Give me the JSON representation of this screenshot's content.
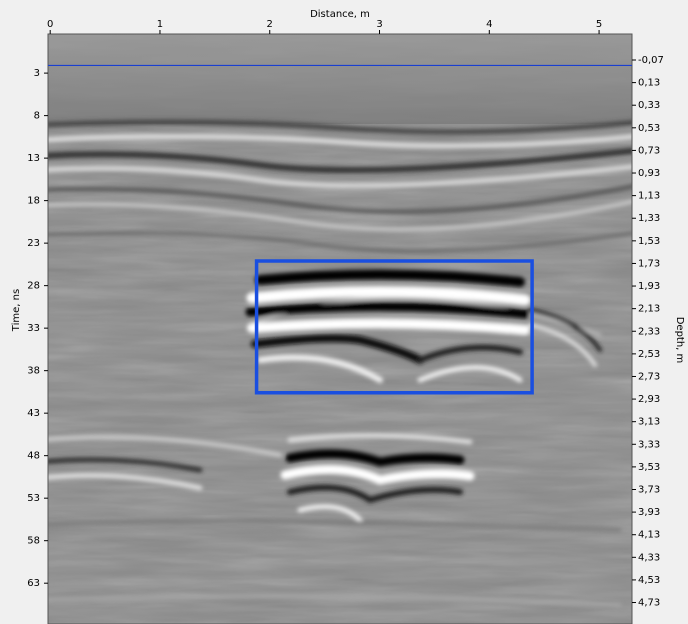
{
  "chart_data": {
    "type": "radargram",
    "xlabel": "Distance, m",
    "ylabel": "Time, ns",
    "y2label": "Depth, m",
    "xlim": [
      -0.02,
      5.3
    ],
    "xticks": [
      0,
      1,
      2,
      3,
      4,
      5
    ],
    "ylim": [
      -1.6,
      67.8
    ],
    "yticks": [
      3,
      8,
      13,
      18,
      23,
      28,
      33,
      38,
      43,
      48,
      53,
      58,
      63
    ],
    "y2lim": [
      -0.3,
      4.92
    ],
    "y2ticks": [
      {
        "value": -0.07,
        "label": "-0,07"
      },
      {
        "value": 0.13,
        "label": "0,13"
      },
      {
        "value": 0.33,
        "label": "0,33"
      },
      {
        "value": 0.53,
        "label": "0,53"
      },
      {
        "value": 0.73,
        "label": "0,73"
      },
      {
        "value": 0.93,
        "label": "0,93"
      },
      {
        "value": 1.13,
        "label": "1,13"
      },
      {
        "value": 1.33,
        "label": "1,33"
      },
      {
        "value": 1.53,
        "label": "1,53"
      },
      {
        "value": 1.73,
        "label": "1,73"
      },
      {
        "value": 1.93,
        "label": "1,93"
      },
      {
        "value": 2.13,
        "label": "2,13"
      },
      {
        "value": 2.33,
        "label": "2,33"
      },
      {
        "value": 2.53,
        "label": "2,53"
      },
      {
        "value": 2.73,
        "label": "2,73"
      },
      {
        "value": 2.93,
        "label": "2,93"
      },
      {
        "value": 3.13,
        "label": "3,13"
      },
      {
        "value": 3.33,
        "label": "3,33"
      },
      {
        "value": 3.53,
        "label": "3,53"
      },
      {
        "value": 3.73,
        "label": "3,73"
      },
      {
        "value": 3.93,
        "label": "3,93"
      },
      {
        "value": 4.13,
        "label": "4,13"
      },
      {
        "value": 4.33,
        "label": "4,33"
      },
      {
        "value": 4.53,
        "label": "4,53"
      },
      {
        "value": 4.73,
        "label": "4,73"
      }
    ],
    "surface_line": {
      "y": 2.1,
      "color": "#1a3fd0"
    },
    "highlight": {
      "x": [
        1.88,
        4.39
      ],
      "y": [
        25.1,
        40.6
      ],
      "color": "#1a4fe0"
    }
  }
}
